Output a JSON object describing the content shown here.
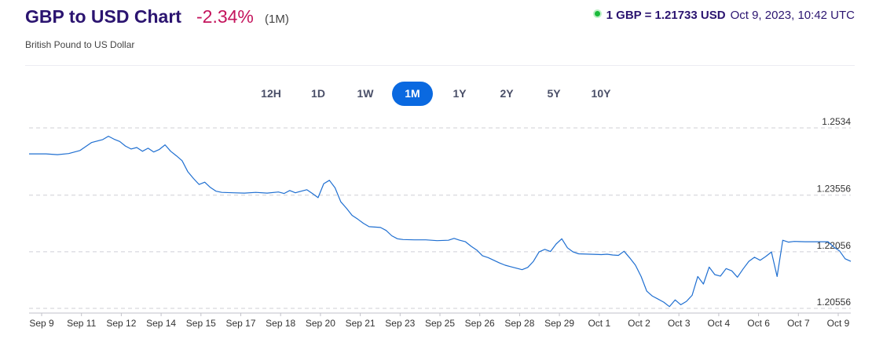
{
  "header": {
    "title": "GBP to USD Chart",
    "change": "-2.34%",
    "period": "(1M)",
    "subtitle": "British Pound to US Dollar",
    "rate": "1 GBP = 1.21733 USD",
    "timestamp": "Oct 9, 2023, 10:42 UTC"
  },
  "tabs": [
    {
      "label": "12H",
      "active": false
    },
    {
      "label": "1D",
      "active": false
    },
    {
      "label": "1W",
      "active": false
    },
    {
      "label": "1M",
      "active": true
    },
    {
      "label": "1Y",
      "active": false
    },
    {
      "label": "2Y",
      "active": false
    },
    {
      "label": "5Y",
      "active": false
    },
    {
      "label": "10Y",
      "active": false
    }
  ],
  "colors": {
    "line": "#1f6fd1",
    "change_negative": "#c4145c",
    "tab_active": "#0a69e0",
    "live_dot": "#1aba3b"
  },
  "chart_data": {
    "type": "line",
    "xlabel": "",
    "ylabel": "",
    "ylim": [
      1.2043,
      1.2561
    ],
    "y_ticks": [
      "1.2534",
      "1.23556",
      "1.22056",
      "1.20556"
    ],
    "x_ticks": [
      "Sep 9",
      "Sep 11",
      "Sep 12",
      "Sep 14",
      "Sep 15",
      "Sep 17",
      "Sep 18",
      "Sep 20",
      "Sep 21",
      "Sep 23",
      "Sep 25",
      "Sep 26",
      "Sep 28",
      "Sep 29",
      "Oct 1",
      "Oct 2",
      "Oct 3",
      "Oct 4",
      "Oct 6",
      "Oct 7",
      "Oct 9"
    ],
    "grid": true,
    "series": [
      {
        "values": [
          [
            0,
            1.2465
          ],
          [
            3,
            1.2465
          ],
          [
            5,
            1.2463
          ],
          [
            7,
            1.2466
          ],
          [
            9,
            1.2474
          ],
          [
            11,
            1.2495
          ],
          [
            13,
            1.2503
          ],
          [
            14,
            1.2512
          ],
          [
            15,
            1.2504
          ],
          [
            16,
            1.2498
          ],
          [
            17,
            1.2486
          ],
          [
            18,
            1.2478
          ],
          [
            19,
            1.2482
          ],
          [
            20,
            1.2472
          ],
          [
            21,
            1.248
          ],
          [
            22,
            1.247
          ],
          [
            23,
            1.2477
          ],
          [
            24,
            1.2489
          ],
          [
            25,
            1.2472
          ],
          [
            26,
            1.246
          ],
          [
            27,
            1.2447
          ],
          [
            28,
            1.2418
          ],
          [
            29,
            1.24
          ],
          [
            30,
            1.2384
          ],
          [
            31,
            1.239
          ],
          [
            32,
            1.2376
          ],
          [
            33,
            1.2366
          ],
          [
            34,
            1.2363
          ],
          [
            36,
            1.2362
          ],
          [
            38,
            1.2361
          ],
          [
            40,
            1.2363
          ],
          [
            42,
            1.2361
          ],
          [
            44,
            1.2364
          ],
          [
            45,
            1.236
          ],
          [
            46,
            1.2368
          ],
          [
            47,
            1.2362
          ],
          [
            48,
            1.2366
          ],
          [
            49,
            1.237
          ],
          [
            50,
            1.236
          ],
          [
            51,
            1.2349
          ],
          [
            52,
            1.2386
          ],
          [
            53,
            1.2395
          ],
          [
            54,
            1.2375
          ],
          [
            55,
            1.2338
          ],
          [
            56,
            1.2321
          ],
          [
            57,
            1.2302
          ],
          [
            58,
            1.2292
          ],
          [
            59,
            1.2281
          ],
          [
            60,
            1.2272
          ],
          [
            62,
            1.227
          ],
          [
            63,
            1.2262
          ],
          [
            64,
            1.2248
          ],
          [
            65,
            1.224
          ],
          [
            66,
            1.2238
          ],
          [
            68,
            1.2237
          ],
          [
            70,
            1.2237
          ],
          [
            72,
            1.2235
          ],
          [
            74,
            1.2236
          ],
          [
            75,
            1.2241
          ],
          [
            76,
            1.2236
          ],
          [
            77,
            1.2232
          ],
          [
            78,
            1.222
          ],
          [
            79,
            1.221
          ],
          [
            80,
            1.2195
          ],
          [
            81,
            1.219
          ],
          [
            82,
            1.2183
          ],
          [
            83,
            1.2176
          ],
          [
            84,
            1.217
          ],
          [
            85,
            1.2166
          ],
          [
            86,
            1.2162
          ],
          [
            87,
            1.2158
          ],
          [
            88,
            1.2164
          ],
          [
            89,
            1.218
          ],
          [
            90,
            1.2205
          ],
          [
            91,
            1.2212
          ],
          [
            92,
            1.2206
          ],
          [
            93,
            1.2226
          ],
          [
            94,
            1.224
          ],
          [
            95,
            1.2216
          ],
          [
            96,
            1.2205
          ],
          [
            97,
            1.22
          ],
          [
            99,
            1.2199
          ],
          [
            101,
            1.2198
          ],
          [
            102,
            1.2199
          ],
          [
            103,
            1.2197
          ],
          [
            104,
            1.2196
          ],
          [
            105,
            1.2207
          ],
          [
            106,
            1.2189
          ],
          [
            107,
            1.217
          ],
          [
            108,
            1.214
          ],
          [
            109,
            1.2101
          ],
          [
            110,
            1.2088
          ],
          [
            111,
            1.208
          ],
          [
            112,
            1.2072
          ],
          [
            113,
            1.206
          ],
          [
            114,
            1.2078
          ],
          [
            115,
            1.2065
          ],
          [
            116,
            1.2074
          ],
          [
            117,
            1.209
          ],
          [
            118,
            1.214
          ],
          [
            119,
            1.212
          ],
          [
            120,
            1.2165
          ],
          [
            121,
            1.2145
          ],
          [
            122,
            1.2141
          ],
          [
            123,
            1.2161
          ],
          [
            124,
            1.2155
          ],
          [
            125,
            1.2138
          ],
          [
            126,
            1.216
          ],
          [
            127,
            1.218
          ],
          [
            128,
            1.2191
          ],
          [
            129,
            1.2183
          ],
          [
            130,
            1.2193
          ],
          [
            131,
            1.2205
          ],
          [
            132,
            1.214
          ],
          [
            133,
            1.2236
          ],
          [
            134,
            1.2231
          ],
          [
            135,
            1.2233
          ],
          [
            137,
            1.2232
          ],
          [
            139,
            1.2232
          ],
          [
            141,
            1.2232
          ],
          [
            142,
            1.2218
          ],
          [
            143,
            1.2208
          ],
          [
            144,
            1.2187
          ],
          [
            145,
            1.218
          ]
        ]
      }
    ]
  }
}
